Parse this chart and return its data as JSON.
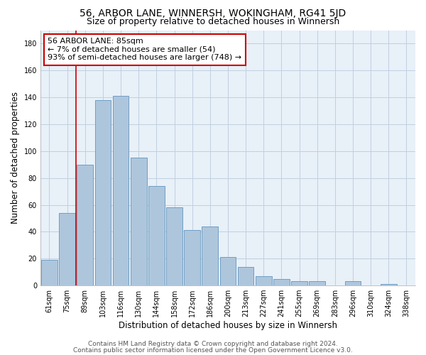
{
  "title": "56, ARBOR LANE, WINNERSH, WOKINGHAM, RG41 5JD",
  "subtitle": "Size of property relative to detached houses in Winnersh",
  "xlabel": "Distribution of detached houses by size in Winnersh",
  "ylabel": "Number of detached properties",
  "bar_labels": [
    "61sqm",
    "75sqm",
    "89sqm",
    "103sqm",
    "116sqm",
    "130sqm",
    "144sqm",
    "158sqm",
    "172sqm",
    "186sqm",
    "200sqm",
    "213sqm",
    "227sqm",
    "241sqm",
    "255sqm",
    "269sqm",
    "283sqm",
    "296sqm",
    "310sqm",
    "324sqm",
    "338sqm"
  ],
  "bar_values": [
    19,
    54,
    90,
    138,
    141,
    95,
    74,
    58,
    41,
    44,
    21,
    14,
    7,
    5,
    3,
    3,
    0,
    3,
    0,
    1,
    0
  ],
  "bar_color": "#aec6dc",
  "bar_edge_color": "#6f9fc5",
  "marker_line_color": "#cc0000",
  "annotation_text": "56 ARBOR LANE: 85sqm\n← 7% of detached houses are smaller (54)\n93% of semi-detached houses are larger (748) →",
  "annotation_box_edge": "#cc0000",
  "ylim": [
    0,
    190
  ],
  "yticks": [
    0,
    20,
    40,
    60,
    80,
    100,
    120,
    140,
    160,
    180
  ],
  "footer_line1": "Contains HM Land Registry data © Crown copyright and database right 2024.",
  "footer_line2": "Contains public sector information licensed under the Open Government Licence v3.0.",
  "bg_color": "#ffffff",
  "plot_bg_color": "#e8f0f8",
  "grid_color": "#c0d0e0",
  "title_fontsize": 10,
  "subtitle_fontsize": 9,
  "axis_label_fontsize": 8.5,
  "tick_fontsize": 7,
  "annotation_fontsize": 8,
  "footer_fontsize": 6.5
}
